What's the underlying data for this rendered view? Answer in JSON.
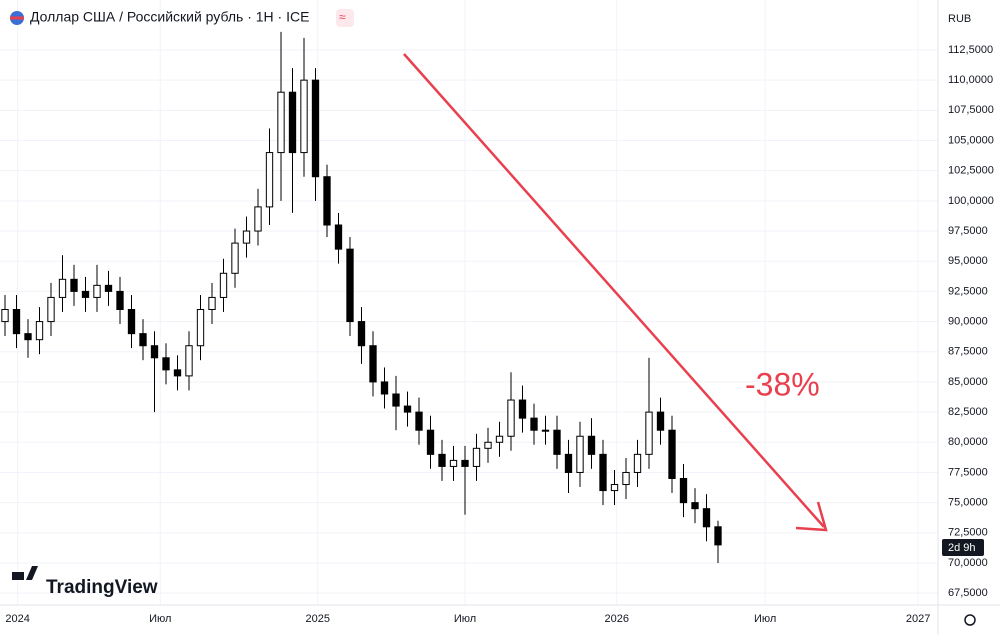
{
  "chart_data": {
    "type": "candlestick",
    "title": "Доллар США / Российский рубль · 1Н · ICE",
    "currency": "RUB",
    "countdown": "2d 9h",
    "annotation": "-38%",
    "brand": "TradingView",
    "up_color": "#ffffff",
    "down_color": "#000000",
    "arrow_color": "#e8404f",
    "open": [
      90,
      91,
      89,
      88.5,
      90,
      92,
      93.5,
      92.5,
      92,
      93,
      92.5,
      91,
      89,
      88,
      87,
      86,
      85.5,
      88,
      91,
      92,
      94,
      96.5,
      97.5,
      99.5,
      104,
      109,
      104,
      110,
      102,
      98,
      96,
      90,
      88,
      85,
      84,
      83,
      82.5,
      81,
      79,
      78,
      78.5,
      78,
      79.5,
      80,
      80.5,
      83.5,
      82,
      81,
      81,
      79,
      77.5,
      80.5,
      79,
      76,
      76.5,
      77.5,
      79,
      82.5,
      81,
      77,
      75,
      74.5,
      73
    ],
    "high": [
      92.2,
      92.2,
      90.2,
      91.2,
      93.2,
      95.5,
      94.7,
      93.7,
      94.7,
      94.2,
      93.7,
      92.2,
      90.2,
      89.2,
      88.2,
      87.2,
      89.2,
      92.2,
      93.2,
      95.2,
      97.7,
      98.7,
      101,
      106,
      114,
      111,
      113.5,
      111,
      103,
      99,
      97,
      91.2,
      89.2,
      86.2,
      85.5,
      84.2,
      83.7,
      82.2,
      80.2,
      79.7,
      79.7,
      80.7,
      81.2,
      81.7,
      85.8,
      84.7,
      83.2,
      82.2,
      82.2,
      80.2,
      81.7,
      82,
      80.2,
      77.7,
      78.7,
      80.2,
      87,
      83.7,
      82.2,
      78.2,
      76.2,
      75.7,
      73.5
    ],
    "low": [
      88.8,
      87.8,
      87,
      87.3,
      88.8,
      90.8,
      91.3,
      90.8,
      90.8,
      91.3,
      89.8,
      87.8,
      86.8,
      82.5,
      84.8,
      84.3,
      84.3,
      86.8,
      89.8,
      90.8,
      92.8,
      95.3,
      96.3,
      98,
      100,
      99,
      102,
      100,
      97,
      94.8,
      88.8,
      86.5,
      83.8,
      82.8,
      81,
      81.3,
      79.8,
      77.8,
      76.8,
      76.8,
      74,
      76.8,
      78.3,
      78.8,
      79.3,
      80.8,
      79.8,
      79.8,
      77.8,
      75.8,
      76.3,
      77.8,
      74.8,
      74.8,
      75.3,
      76.3,
      77.8,
      79.8,
      75.8,
      73.8,
      73.3,
      71.8,
      70
    ],
    "close": [
      91,
      89,
      88.5,
      90,
      92,
      93.5,
      92.5,
      92,
      93,
      92.5,
      91,
      89,
      88,
      87,
      86,
      85.5,
      88,
      91,
      92,
      94,
      96.5,
      97.5,
      99.5,
      104,
      109,
      104,
      110,
      102,
      98,
      96,
      90,
      88,
      85,
      84,
      83,
      82.5,
      81,
      79,
      78,
      78.5,
      78,
      79.5,
      80,
      80.5,
      83.5,
      82,
      81,
      81,
      79,
      77.5,
      80.5,
      79,
      76,
      76.5,
      77.5,
      79,
      82.5,
      81,
      77,
      75,
      74.5,
      73,
      71.5
    ],
    "xlim": [
      -0.435,
      81.13
    ],
    "xticks": [
      {
        "value": 1.1,
        "label": "2024"
      },
      {
        "value": 13.5,
        "label": "Июл"
      },
      {
        "value": 27.2,
        "label": "2025"
      },
      {
        "value": 40,
        "label": "Июл"
      },
      {
        "value": 53.2,
        "label": "2026"
      },
      {
        "value": 66.1,
        "label": "Июл"
      },
      {
        "value": 79.4,
        "label": "2027"
      }
    ],
    "ylim": [
      66.52,
      116.64
    ],
    "yticks": [
      {
        "value": 67.5,
        "label": "67,5000"
      },
      {
        "value": 70,
        "label": "70,0000"
      },
      {
        "value": 72.5,
        "label": "72,5000"
      },
      {
        "value": 75,
        "label": "75,0000"
      },
      {
        "value": 77.5,
        "label": "77,5000"
      },
      {
        "value": 80,
        "label": "80,0000"
      },
      {
        "value": 82.5,
        "label": "82,5000"
      },
      {
        "value": 85,
        "label": "85,0000"
      },
      {
        "value": 87.5,
        "label": "87,5000"
      },
      {
        "value": 90,
        "label": "90,0000"
      },
      {
        "value": 92.5,
        "label": "92,5000"
      },
      {
        "value": 95,
        "label": "95,0000"
      },
      {
        "value": 97.5,
        "label": "97,5000"
      },
      {
        "value": 100,
        "label": "100,0000"
      },
      {
        "value": 102.5,
        "label": "102,5000"
      },
      {
        "value": 105,
        "label": "105,0000"
      },
      {
        "value": 107.5,
        "label": "107,5000"
      },
      {
        "value": 110,
        "label": "110,0000"
      },
      {
        "value": 112.5,
        "label": "112,5000"
      }
    ],
    "grid": true
  }
}
